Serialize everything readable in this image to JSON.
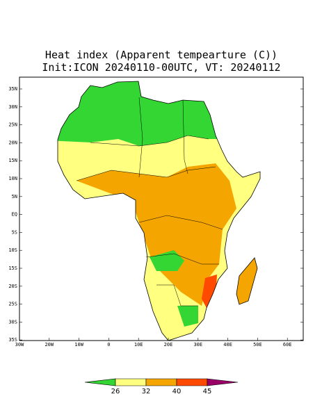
{
  "header": {
    "title": "Heat index (Apparent tempearture (C))",
    "subtitle": "Init:ICON 20240110-00UTC, VT: 20240112"
  },
  "map": {
    "lat_labels": [
      "35N",
      "30N",
      "25N",
      "20N",
      "15N",
      "10N",
      "5N",
      "EQ",
      "5S",
      "10S",
      "15S",
      "20S",
      "25S",
      "30S",
      "35S"
    ],
    "lon_labels": [
      "30W",
      "20W",
      "10W",
      "0",
      "10E",
      "20E",
      "30E",
      "40E",
      "50E",
      "60E"
    ]
  },
  "colorbar": {
    "ticks": [
      26,
      32,
      40,
      45
    ],
    "colors": [
      "#33d633",
      "#ffff80",
      "#f5a500",
      "#ff4a00",
      "#990066"
    ]
  }
}
